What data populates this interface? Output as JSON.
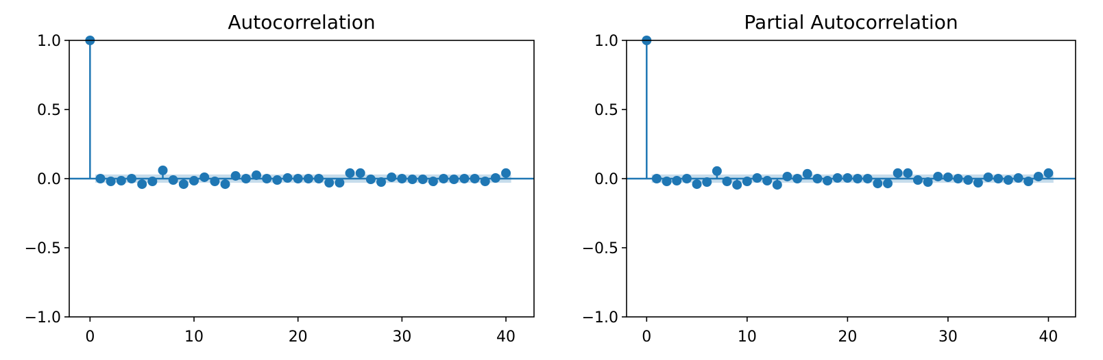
{
  "colors": {
    "series": "#1f77b4",
    "band": "#1f77b4",
    "axes": "#000000"
  },
  "chart_data": [
    {
      "type": "stem",
      "title": "Autocorrelation",
      "x_ticks": [
        0,
        10,
        20,
        30,
        40
      ],
      "y_ticks": [
        -1.0,
        -0.5,
        0.0,
        0.5,
        1.0
      ],
      "y_tick_labels": [
        "−1.0",
        "−0.5",
        "0.0",
        "0.5",
        "1.0"
      ],
      "xlim": [
        -2,
        42.7
      ],
      "ylim": [
        -1.0,
        1.0
      ],
      "confidence_band": 0.03,
      "x": [
        0,
        1,
        2,
        3,
        4,
        5,
        6,
        7,
        8,
        9,
        10,
        11,
        12,
        13,
        14,
        15,
        16,
        17,
        18,
        19,
        20,
        21,
        22,
        23,
        24,
        25,
        26,
        27,
        28,
        29,
        30,
        31,
        32,
        33,
        34,
        35,
        36,
        37,
        38,
        39,
        40
      ],
      "values": [
        1.0,
        0.0,
        -0.02,
        -0.015,
        0.0,
        -0.04,
        -0.02,
        0.06,
        -0.01,
        -0.04,
        -0.015,
        0.01,
        -0.02,
        -0.04,
        0.02,
        0.0,
        0.025,
        0.0,
        -0.01,
        0.005,
        0.0,
        0.0,
        0.0,
        -0.03,
        -0.03,
        0.04,
        0.04,
        -0.005,
        -0.025,
        0.01,
        0.0,
        -0.005,
        -0.005,
        -0.02,
        0.0,
        -0.005,
        0.0,
        0.0,
        -0.02,
        0.005,
        0.04
      ]
    },
    {
      "type": "stem",
      "title": "Partial Autocorrelation",
      "x_ticks": [
        0,
        10,
        20,
        30,
        40
      ],
      "y_ticks": [
        -1.0,
        -0.5,
        0.0,
        0.5,
        1.0
      ],
      "y_tick_labels": [
        "−1.0",
        "−0.5",
        "0.0",
        "0.5",
        "1.0"
      ],
      "xlim": [
        -2,
        42.7
      ],
      "ylim": [
        -1.0,
        1.0
      ],
      "confidence_band": 0.03,
      "x": [
        0,
        1,
        2,
        3,
        4,
        5,
        6,
        7,
        8,
        9,
        10,
        11,
        12,
        13,
        14,
        15,
        16,
        17,
        18,
        19,
        20,
        21,
        22,
        23,
        24,
        25,
        26,
        27,
        28,
        29,
        30,
        31,
        32,
        33,
        34,
        35,
        36,
        37,
        38,
        39,
        40
      ],
      "values": [
        1.0,
        0.0,
        -0.02,
        -0.015,
        0.0,
        -0.04,
        -0.025,
        0.055,
        -0.02,
        -0.045,
        -0.02,
        0.005,
        -0.015,
        -0.045,
        0.015,
        0.0,
        0.035,
        0.0,
        -0.015,
        0.005,
        0.005,
        0.0,
        0.0,
        -0.035,
        -0.035,
        0.04,
        0.04,
        -0.01,
        -0.025,
        0.015,
        0.01,
        0.0,
        -0.01,
        -0.03,
        0.01,
        0.0,
        -0.01,
        0.005,
        -0.02,
        0.015,
        0.04
      ]
    }
  ]
}
